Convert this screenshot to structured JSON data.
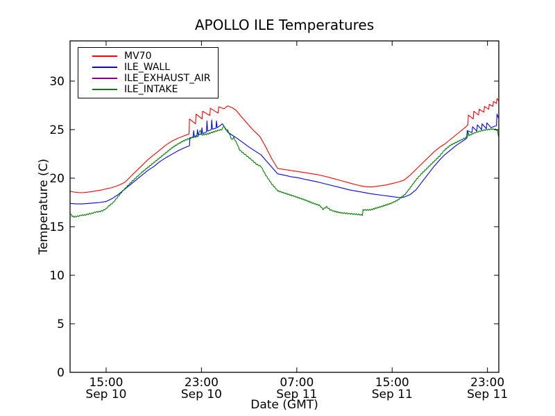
{
  "chart_data": {
    "type": "line",
    "title": "APOLLO ILE Temperatures",
    "xlabel": "Date (GMT)",
    "ylabel": "Temperature (C)",
    "grid": false,
    "legend_position": "upper left",
    "x_unit": "hours since Sep 10 00:00 GMT",
    "xlim": [
      11.975,
      47.95
    ],
    "ylim": [
      0,
      34.14
    ],
    "y_ticks": [
      0,
      5,
      10,
      15,
      20,
      25,
      30
    ],
    "x_ticks": [
      {
        "value": 15,
        "time": "15:00",
        "date": "Sep 10"
      },
      {
        "value": 23,
        "time": "23:00",
        "date": "Sep 10"
      },
      {
        "value": 31,
        "time": "07:00",
        "date": "Sep 11"
      },
      {
        "value": 39,
        "time": "15:00",
        "date": "Sep 11"
      },
      {
        "value": 47,
        "time": "23:00",
        "date": "Sep 11"
      }
    ],
    "series": [
      {
        "name": "MV70",
        "color": "#ff0000",
        "noisy": false,
        "points": [
          [
            12.0,
            18.65
          ],
          [
            12.3,
            18.57
          ],
          [
            12.6,
            18.52
          ],
          [
            13.0,
            18.5
          ],
          [
            13.4,
            18.55
          ],
          [
            13.8,
            18.62
          ],
          [
            14.2,
            18.7
          ],
          [
            14.6,
            18.78
          ],
          [
            15.0,
            18.9
          ],
          [
            15.4,
            19.0
          ],
          [
            15.8,
            19.15
          ],
          [
            16.2,
            19.35
          ],
          [
            16.6,
            19.6
          ],
          [
            17.0,
            20.1
          ],
          [
            17.5,
            20.7
          ],
          [
            18.0,
            21.3
          ],
          [
            18.5,
            21.9
          ],
          [
            19.0,
            22.4
          ],
          [
            19.5,
            22.9
          ],
          [
            20.0,
            23.4
          ],
          [
            20.5,
            23.8
          ],
          [
            21.0,
            24.1
          ],
          [
            21.5,
            24.35
          ],
          [
            21.95,
            24.55
          ],
          [
            22.0,
            26.1
          ],
          [
            22.5,
            25.6
          ],
          [
            22.55,
            26.6
          ],
          [
            23.05,
            26.1
          ],
          [
            23.1,
            26.9
          ],
          [
            23.7,
            26.45
          ],
          [
            23.75,
            27.2
          ],
          [
            24.4,
            26.7
          ],
          [
            24.45,
            27.35
          ],
          [
            24.9,
            27.15
          ],
          [
            25.2,
            27.45
          ],
          [
            25.6,
            27.25
          ],
          [
            25.9,
            27.0
          ],
          [
            26.3,
            26.4
          ],
          [
            26.8,
            25.7
          ],
          [
            27.3,
            25.0
          ],
          [
            27.9,
            24.3
          ],
          [
            28.4,
            23.2
          ],
          [
            28.9,
            22.0
          ],
          [
            29.4,
            21.0
          ],
          [
            30.2,
            20.85
          ],
          [
            31.0,
            20.7
          ],
          [
            31.8,
            20.55
          ],
          [
            32.8,
            20.35
          ],
          [
            33.5,
            20.15
          ],
          [
            34.1,
            19.95
          ],
          [
            34.7,
            19.75
          ],
          [
            35.3,
            19.55
          ],
          [
            35.9,
            19.35
          ],
          [
            36.4,
            19.2
          ],
          [
            36.9,
            19.1
          ],
          [
            37.4,
            19.1
          ],
          [
            37.9,
            19.2
          ],
          [
            38.5,
            19.3
          ],
          [
            39.0,
            19.45
          ],
          [
            39.5,
            19.6
          ],
          [
            40.0,
            19.8
          ],
          [
            40.5,
            20.3
          ],
          [
            41.0,
            20.9
          ],
          [
            41.5,
            21.5
          ],
          [
            42.0,
            22.1
          ],
          [
            42.5,
            22.7
          ],
          [
            43.0,
            23.2
          ],
          [
            43.4,
            23.5
          ],
          [
            43.9,
            24.0
          ],
          [
            44.4,
            24.5
          ],
          [
            44.9,
            25.0
          ],
          [
            45.2,
            25.3
          ],
          [
            45.35,
            25.5
          ],
          [
            45.4,
            26.5
          ],
          [
            45.8,
            26.1
          ],
          [
            45.85,
            26.9
          ],
          [
            46.25,
            26.5
          ],
          [
            46.3,
            27.1
          ],
          [
            46.7,
            26.8
          ],
          [
            46.75,
            27.4
          ],
          [
            47.1,
            27.1
          ],
          [
            47.15,
            27.6
          ],
          [
            47.45,
            27.4
          ],
          [
            47.5,
            27.9
          ],
          [
            47.75,
            27.7
          ],
          [
            47.8,
            28.2
          ],
          [
            47.92,
            28.0
          ]
        ]
      },
      {
        "name": "ILE_WALL",
        "color": "#0000ff",
        "noisy": false,
        "points": [
          [
            12.0,
            17.4
          ],
          [
            12.5,
            17.35
          ],
          [
            13.0,
            17.35
          ],
          [
            13.5,
            17.4
          ],
          [
            14.0,
            17.45
          ],
          [
            14.5,
            17.5
          ],
          [
            15.0,
            17.6
          ],
          [
            15.5,
            17.9
          ],
          [
            16.0,
            18.3
          ],
          [
            16.5,
            18.8
          ],
          [
            17.0,
            19.3
          ],
          [
            17.5,
            19.8
          ],
          [
            18.0,
            20.3
          ],
          [
            18.5,
            20.8
          ],
          [
            19.0,
            21.2
          ],
          [
            19.5,
            21.7
          ],
          [
            20.0,
            22.1
          ],
          [
            20.5,
            22.45
          ],
          [
            21.0,
            22.8
          ],
          [
            21.5,
            23.1
          ],
          [
            22.0,
            23.35
          ],
          [
            22.03,
            24.15
          ],
          [
            22.3,
            24.25
          ],
          [
            22.35,
            24.9
          ],
          [
            22.4,
            24.3
          ],
          [
            22.62,
            24.4
          ],
          [
            22.66,
            25.0
          ],
          [
            22.72,
            24.45
          ],
          [
            23.0,
            24.55
          ],
          [
            23.04,
            25.2
          ],
          [
            23.1,
            24.6
          ],
          [
            23.42,
            24.75
          ],
          [
            23.46,
            25.9
          ],
          [
            23.52,
            24.85
          ],
          [
            23.82,
            25.0
          ],
          [
            23.86,
            26.0
          ],
          [
            23.92,
            25.05
          ],
          [
            24.22,
            25.15
          ],
          [
            24.26,
            25.9
          ],
          [
            24.32,
            25.2
          ],
          [
            24.6,
            25.45
          ],
          [
            24.75,
            25.6
          ],
          [
            25.0,
            25.15
          ],
          [
            25.2,
            24.75
          ],
          [
            25.5,
            24.5
          ],
          [
            26.0,
            24.1
          ],
          [
            26.5,
            23.65
          ],
          [
            27.0,
            23.2
          ],
          [
            27.5,
            22.8
          ],
          [
            28.0,
            22.4
          ],
          [
            28.5,
            21.7
          ],
          [
            29.0,
            21.0
          ],
          [
            29.4,
            20.45
          ],
          [
            30.0,
            20.3
          ],
          [
            30.5,
            20.15
          ],
          [
            31.1,
            20.05
          ],
          [
            31.8,
            19.85
          ],
          [
            32.8,
            19.6
          ],
          [
            33.6,
            19.35
          ],
          [
            34.6,
            19.05
          ],
          [
            35.4,
            18.8
          ],
          [
            36.3,
            18.6
          ],
          [
            37.2,
            18.4
          ],
          [
            38.1,
            18.25
          ],
          [
            39.0,
            18.1
          ],
          [
            39.6,
            18.0
          ],
          [
            40.0,
            18.05
          ],
          [
            40.5,
            18.3
          ],
          [
            41.0,
            18.8
          ],
          [
            41.5,
            19.6
          ],
          [
            42.0,
            20.4
          ],
          [
            42.5,
            21.2
          ],
          [
            43.0,
            21.9
          ],
          [
            43.4,
            22.4
          ],
          [
            43.9,
            22.9
          ],
          [
            44.4,
            23.4
          ],
          [
            44.9,
            23.8
          ],
          [
            45.25,
            24.1
          ],
          [
            45.3,
            24.9
          ],
          [
            45.7,
            24.7
          ],
          [
            45.75,
            25.3
          ],
          [
            46.1,
            24.85
          ],
          [
            46.15,
            25.5
          ],
          [
            46.5,
            25.0
          ],
          [
            46.55,
            25.6
          ],
          [
            46.9,
            25.1
          ],
          [
            46.95,
            25.7
          ],
          [
            47.3,
            25.2
          ],
          [
            47.6,
            25.35
          ],
          [
            47.75,
            25.4
          ],
          [
            47.8,
            26.6
          ],
          [
            47.92,
            26.2
          ]
        ]
      },
      {
        "name": "ILE_EXHAUST_AIR",
        "color": "#800080",
        "noisy": false,
        "note": "legend entry only; no line visible in plot area",
        "points": []
      },
      {
        "name": "ILE_INTAKE",
        "color": "#008000",
        "noisy": true,
        "points": [
          [
            12.0,
            16.35
          ],
          [
            12.15,
            16.1
          ],
          [
            12.3,
            16.02
          ],
          [
            12.5,
            16.05
          ],
          [
            12.7,
            16.1
          ],
          [
            12.9,
            16.18
          ],
          [
            13.2,
            16.2
          ],
          [
            13.5,
            16.3
          ],
          [
            13.8,
            16.38
          ],
          [
            14.1,
            16.5
          ],
          [
            14.4,
            16.55
          ],
          [
            14.7,
            16.65
          ],
          [
            15.0,
            16.85
          ],
          [
            15.2,
            17.1
          ],
          [
            15.6,
            17.5
          ],
          [
            16.0,
            18.1
          ],
          [
            16.4,
            18.7
          ],
          [
            16.8,
            19.2
          ],
          [
            17.2,
            19.7
          ],
          [
            17.6,
            20.15
          ],
          [
            18.0,
            20.6
          ],
          [
            18.5,
            21.1
          ],
          [
            19.0,
            21.6
          ],
          [
            19.5,
            22.1
          ],
          [
            20.0,
            22.6
          ],
          [
            20.5,
            23.1
          ],
          [
            21.0,
            23.5
          ],
          [
            21.5,
            23.85
          ],
          [
            22.0,
            24.1
          ],
          [
            22.3,
            24.2
          ],
          [
            22.7,
            24.3
          ],
          [
            22.9,
            25.0
          ],
          [
            23.0,
            24.45
          ],
          [
            23.5,
            24.55
          ],
          [
            24.1,
            24.8
          ],
          [
            24.5,
            24.95
          ],
          [
            24.7,
            25.0
          ],
          [
            24.9,
            25.4
          ],
          [
            25.0,
            25.0
          ],
          [
            25.2,
            24.95
          ],
          [
            25.4,
            24.4
          ],
          [
            25.55,
            23.95
          ],
          [
            25.7,
            24.2
          ],
          [
            26.0,
            23.5
          ],
          [
            26.2,
            22.9
          ],
          [
            26.5,
            22.6
          ],
          [
            26.8,
            22.3
          ],
          [
            27.2,
            21.9
          ],
          [
            27.6,
            21.45
          ],
          [
            28.0,
            21.2
          ],
          [
            28.4,
            20.3
          ],
          [
            28.9,
            19.4
          ],
          [
            29.4,
            18.7
          ],
          [
            30.0,
            18.45
          ],
          [
            30.5,
            18.25
          ],
          [
            31.1,
            18.0
          ],
          [
            31.7,
            17.75
          ],
          [
            32.2,
            17.5
          ],
          [
            32.9,
            17.2
          ],
          [
            33.2,
            16.8
          ],
          [
            33.5,
            17.05
          ],
          [
            33.8,
            16.75
          ],
          [
            34.1,
            16.6
          ],
          [
            34.6,
            16.45
          ],
          [
            35.0,
            16.4
          ],
          [
            35.4,
            16.34
          ],
          [
            35.8,
            16.3
          ],
          [
            36.2,
            16.26
          ],
          [
            36.5,
            16.2
          ],
          [
            36.56,
            16.72
          ],
          [
            37.2,
            16.74
          ],
          [
            37.7,
            16.93
          ],
          [
            38.3,
            17.16
          ],
          [
            38.9,
            17.4
          ],
          [
            39.5,
            17.76
          ],
          [
            40.1,
            18.35
          ],
          [
            40.55,
            19.07
          ],
          [
            41.05,
            19.9
          ],
          [
            41.5,
            20.5
          ],
          [
            42.0,
            21.1
          ],
          [
            42.5,
            21.7
          ],
          [
            43.0,
            22.3
          ],
          [
            43.4,
            22.9
          ],
          [
            43.9,
            23.4
          ],
          [
            44.4,
            23.7
          ],
          [
            44.9,
            24.0
          ],
          [
            45.3,
            24.25
          ],
          [
            45.36,
            24.75
          ],
          [
            45.45,
            24.4
          ],
          [
            45.8,
            24.6
          ],
          [
            46.1,
            24.75
          ],
          [
            46.4,
            24.85
          ],
          [
            46.7,
            24.95
          ],
          [
            47.0,
            25.0
          ],
          [
            47.3,
            25.05
          ],
          [
            47.55,
            25.05
          ],
          [
            47.75,
            25.0
          ],
          [
            47.85,
            24.85
          ],
          [
            47.92,
            24.3
          ]
        ]
      }
    ]
  }
}
